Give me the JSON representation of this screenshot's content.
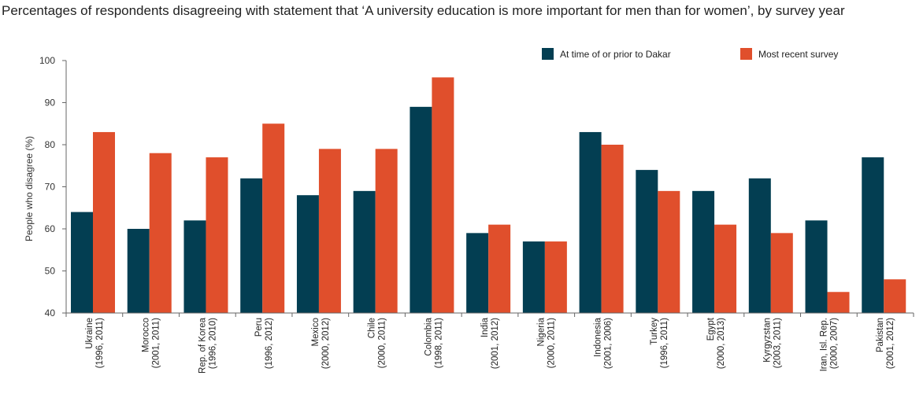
{
  "chart_data": {
    "type": "bar",
    "title": "Percentages of respondents disagreeing with statement that ‘A university education is more important for men than for women’, by survey year",
    "ylabel": "People who disagree (%)",
    "xlabel": "",
    "ylim": [
      40,
      100
    ],
    "yticks": [
      40,
      50,
      60,
      70,
      80,
      90,
      100
    ],
    "grid": false,
    "legend_position": "top-right",
    "categories": [
      [
        "Ukraine",
        "(1996, 2011)"
      ],
      [
        "Morocco",
        "(2001, 2011)"
      ],
      [
        "Rep. of Korea",
        "(1996, 2010)"
      ],
      [
        "Peru",
        "(1996, 2012)"
      ],
      [
        "Mexico",
        "(2000, 2012)"
      ],
      [
        "Chile",
        "(2000, 2011)"
      ],
      [
        "Colombia",
        "(1998, 2011)"
      ],
      [
        "India",
        "(2001, 2012)"
      ],
      [
        "Nigeria",
        "(2000, 2011)"
      ],
      [
        "Indonesia",
        "(2001, 2006)"
      ],
      [
        "Turkey",
        "(1996, 2011)"
      ],
      [
        "Egypt",
        "(2000, 2013)"
      ],
      [
        "Kyrgyzstan",
        "(2003, 2011)"
      ],
      [
        "Iran, Isl. Rep.",
        "(2000, 2007)"
      ],
      [
        "Pakistan",
        "(2001, 2012)"
      ]
    ],
    "series": [
      {
        "name": "At time of or prior to Dakar",
        "color": "#033e52",
        "values": [
          64,
          60,
          62,
          72,
          68,
          69,
          89,
          59,
          57,
          83,
          74,
          69,
          72,
          62,
          77
        ]
      },
      {
        "name": "Most recent survey",
        "color": "#e04f2c",
        "values": [
          83,
          78,
          77,
          85,
          79,
          79,
          96,
          61,
          57,
          80,
          69,
          61,
          59,
          45,
          48
        ]
      }
    ]
  }
}
